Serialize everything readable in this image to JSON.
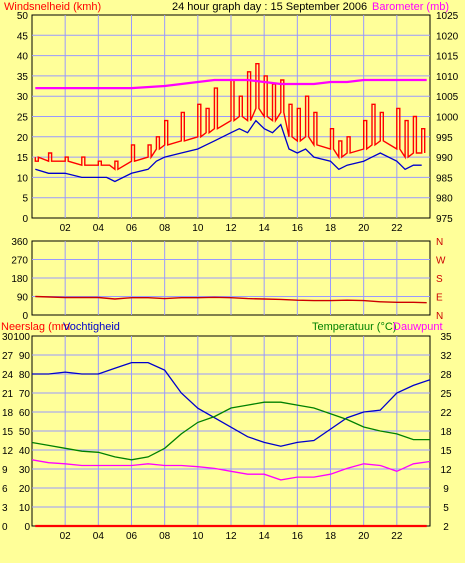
{
  "colors": {
    "background": "#ffff99",
    "grid": "#9a9aff",
    "wind": "#ff0000",
    "wind_avg": "#0000cc",
    "barometer": "#ff00ff",
    "direction": "#cc0000",
    "rain": "#ff0000",
    "humidity": "#0000cc",
    "temperature": "#008000",
    "dewpoint": "#ff00ff"
  },
  "chart_data": [
    {
      "type": "line",
      "title": "24 hour graph day : 15 September 2006",
      "ylabel_left": "Windsnelheid (kmh)",
      "ylabel_right": "Barometer (mb)",
      "x_ticks": [
        "02",
        "04",
        "06",
        "08",
        "10",
        "12",
        "14",
        "16",
        "18",
        "20",
        "22"
      ],
      "xlim": [
        0,
        24
      ],
      "ylim_left": [
        0,
        50
      ],
      "ylim_right": [
        975,
        1025
      ],
      "y_ticks_left": [
        0,
        5,
        10,
        15,
        20,
        25,
        30,
        35,
        40,
        45,
        50
      ],
      "y_ticks_right": [
        975,
        980,
        985,
        990,
        995,
        1000,
        1005,
        1010,
        1015,
        1020,
        1025
      ],
      "series": [
        {
          "name": "Windsnelheid (gust)",
          "axis": "left",
          "x": [
            0.2,
            1,
            2,
            3,
            4,
            4.5,
            5,
            6,
            7,
            7.5,
            8,
            9,
            10,
            10.5,
            11,
            12,
            12.5,
            13,
            13.5,
            14,
            14.5,
            15,
            15.5,
            16,
            16.5,
            17,
            18,
            18.5,
            19,
            20,
            20.5,
            21,
            22,
            22.5,
            23,
            23.5
          ],
          "values": [
            14,
            16,
            15,
            15,
            14,
            13,
            14,
            18,
            18,
            20,
            24,
            26,
            28,
            27,
            32,
            34,
            30,
            36,
            38,
            35,
            33,
            34,
            28,
            27,
            30,
            26,
            22,
            19,
            20,
            24,
            28,
            26,
            27,
            24,
            25,
            22
          ]
        },
        {
          "name": "Windsnelheid (gemiddeld)",
          "axis": "left",
          "x": [
            0.2,
            1,
            2,
            3,
            4,
            4.5,
            5,
            6,
            7,
            7.5,
            8,
            9,
            10,
            10.5,
            11,
            12,
            12.5,
            13,
            13.5,
            14,
            14.5,
            15,
            15.5,
            16,
            16.5,
            17,
            18,
            18.5,
            19,
            20,
            20.5,
            21,
            22,
            22.5,
            23,
            23.5
          ],
          "values": [
            12,
            11,
            11,
            10,
            10,
            10,
            9,
            11,
            12,
            14,
            15,
            16,
            17,
            18,
            19,
            21,
            22,
            21,
            24,
            22,
            21,
            23,
            17,
            16,
            17,
            15,
            14,
            12,
            13,
            14,
            15,
            16,
            14,
            12,
            13,
            13
          ]
        },
        {
          "name": "Barometer",
          "axis": "right",
          "x": [
            0.2,
            2,
            4,
            6,
            8,
            9,
            10,
            11,
            12,
            13,
            14,
            15,
            16,
            17,
            18,
            19,
            20,
            21,
            22,
            23,
            23.8
          ],
          "values": [
            1007,
            1007,
            1007,
            1007,
            1007.5,
            1008,
            1008.5,
            1009,
            1009,
            1009,
            1008.5,
            1008,
            1008,
            1008,
            1008.5,
            1008.5,
            1009,
            1009,
            1009,
            1009,
            1009
          ]
        }
      ]
    },
    {
      "type": "line",
      "ylabel_right": [
        "N",
        "W",
        "S",
        "E",
        "N"
      ],
      "y_ticks_left": [
        0,
        90,
        180,
        270,
        360
      ],
      "ylim": [
        0,
        360
      ],
      "series": [
        {
          "name": "Windrichting",
          "x": [
            0.2,
            2,
            4,
            5,
            6,
            7,
            8,
            9,
            10,
            11,
            12,
            13,
            14,
            15,
            16,
            17,
            18,
            19,
            20,
            21,
            22,
            23,
            23.8
          ],
          "values": [
            90,
            85,
            85,
            78,
            84,
            84,
            80,
            84,
            84,
            86,
            84,
            80,
            78,
            76,
            72,
            70,
            70,
            72,
            70,
            64,
            62,
            62,
            60
          ]
        }
      ]
    },
    {
      "type": "line",
      "ylabel_left": "Neerslag (mm",
      "ylabel_left2": "Vochtigheid",
      "ylabel_right": "Temperatuur (°C)",
      "ylabel_right2": "Dauwpunt",
      "x_ticks": [
        "02",
        "04",
        "06",
        "08",
        "10",
        "12",
        "14",
        "16",
        "18",
        "20",
        "22"
      ],
      "xlim": [
        0,
        24
      ],
      "y_ticks_rain": [
        0,
        3,
        6,
        9,
        12,
        15,
        18,
        21,
        24,
        27,
        30
      ],
      "y_ticks_humidity": [
        0,
        10,
        20,
        30,
        40,
        50,
        60,
        70,
        80,
        90,
        100
      ],
      "y_ticks_temp": [
        2,
        5,
        9,
        12,
        15,
        18,
        22,
        25,
        28,
        32,
        35
      ],
      "ylim_rain": [
        0,
        30
      ],
      "ylim_humidity": [
        0,
        100
      ],
      "ylim_temp": [
        2,
        35
      ],
      "series": [
        {
          "name": "Neerslag",
          "axis": "rain",
          "x": [
            0.2,
            23.8
          ],
          "values": [
            0,
            0
          ]
        },
        {
          "name": "Vochtigheid",
          "axis": "humidity",
          "x": [
            0,
            1,
            2,
            3,
            4,
            5,
            6,
            7,
            8,
            9,
            10,
            11,
            12,
            13,
            14,
            15,
            16,
            17,
            18,
            19,
            20,
            21,
            22,
            23,
            24
          ],
          "values": [
            80,
            80,
            81,
            80,
            80,
            83,
            86,
            86,
            82,
            70,
            62,
            57,
            52,
            47,
            44,
            42,
            44,
            45,
            51,
            57,
            60,
            61,
            70,
            74,
            77
          ]
        },
        {
          "name": "Temperatuur",
          "axis": "temp",
          "x": [
            0,
            1,
            2,
            3,
            4,
            5,
            6,
            7,
            8,
            9,
            10,
            11,
            12,
            13,
            14,
            15,
            16,
            17,
            18,
            19,
            20,
            21,
            22,
            23,
            24
          ],
          "values": [
            16.5,
            16,
            15.5,
            15,
            14.8,
            14,
            13.5,
            14,
            15.5,
            18,
            20,
            21,
            22.5,
            23,
            23.5,
            23.5,
            23,
            22.5,
            21.5,
            20.5,
            19.2,
            18.5,
            18,
            17,
            17
          ]
        },
        {
          "name": "Dauwpunt",
          "axis": "temp",
          "x": [
            0,
            1,
            2,
            3,
            4,
            5,
            6,
            7,
            8,
            9,
            10,
            11,
            12,
            13,
            14,
            15,
            16,
            17,
            18,
            19,
            20,
            21,
            22,
            23,
            24
          ],
          "values": [
            13.5,
            13,
            12.8,
            12.5,
            12.5,
            12.5,
            12.5,
            12.8,
            12.5,
            12.5,
            12.3,
            12,
            11.5,
            11,
            11,
            10,
            10.5,
            10.5,
            11,
            12,
            12.8,
            12.5,
            11.5,
            12.8,
            13.2
          ]
        }
      ]
    }
  ]
}
